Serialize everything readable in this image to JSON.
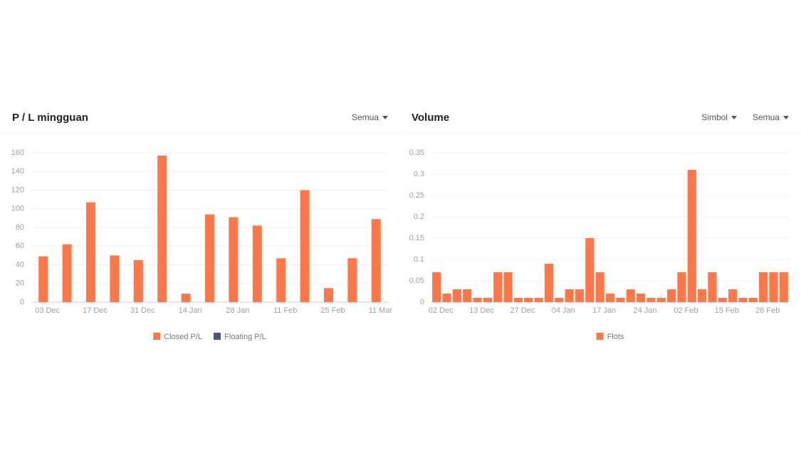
{
  "chart_data": [
    {
      "type": "bar",
      "title": "P / L mingguan",
      "dropdowns": [
        "Semua"
      ],
      "categories": [
        "03 Dec",
        null,
        "17 Dec",
        null,
        "31 Dec",
        null,
        "14 Jan",
        null,
        "28 Jan",
        null,
        "11 Feb",
        null,
        "25 Feb",
        null,
        "11 Mar"
      ],
      "series": [
        {
          "name": "Closed P/L",
          "color": "#ff7748",
          "values": [
            49,
            62,
            107,
            50,
            45,
            157,
            9,
            94,
            91,
            82,
            47,
            120,
            15,
            47,
            89
          ]
        },
        {
          "name": "Floating P/L",
          "color": "#4a5878",
          "values": [
            0,
            0,
            0,
            0,
            0,
            0,
            0,
            0,
            0,
            0,
            0,
            0,
            0,
            0,
            0
          ]
        }
      ],
      "ylim": [
        0,
        160
      ],
      "yticks": [
        0,
        20,
        40,
        60,
        80,
        100,
        120,
        140,
        160
      ],
      "grid": true
    },
    {
      "type": "bar",
      "title": "Volume",
      "dropdowns": [
        "Simbol",
        "Semua"
      ],
      "categories": [
        "02 Dec",
        null,
        null,
        null,
        "13 Dec",
        null,
        null,
        null,
        "27 Dec",
        null,
        null,
        null,
        "04 Jan",
        null,
        null,
        null,
        "17 Jan",
        null,
        null,
        null,
        "24 Jan",
        null,
        null,
        null,
        "02 Feb",
        null,
        null,
        null,
        "15 Feb",
        null,
        null,
        null,
        "28 Feb",
        null,
        null
      ],
      "series": [
        {
          "name": "Flots",
          "color": "#ff7748",
          "values": [
            0.07,
            0.02,
            0.03,
            0.03,
            0.01,
            0.01,
            0.07,
            0.07,
            0.01,
            0.01,
            0.01,
            0.09,
            0.01,
            0.03,
            0.03,
            0.15,
            0.07,
            0.02,
            0.01,
            0.03,
            0.02,
            0.01,
            0.01,
            0.03,
            0.07,
            0.31,
            0.03,
            0.07,
            0.01,
            0.03,
            0.01,
            0.01,
            0.07,
            0.07,
            0.07
          ]
        }
      ],
      "ylim": [
        0,
        0.35
      ],
      "yticks": [
        0,
        0.05,
        0.1,
        0.15,
        0.2,
        0.25,
        0.3,
        0.35
      ],
      "grid": true
    }
  ]
}
